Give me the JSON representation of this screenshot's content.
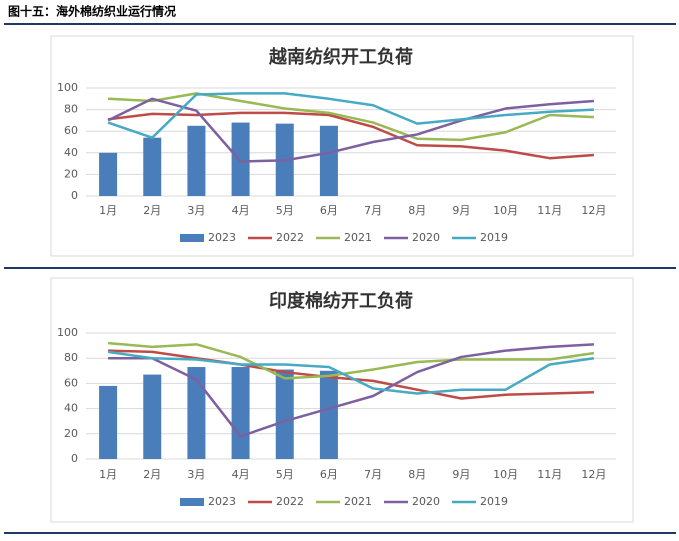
{
  "header": {
    "title": "图十五：海外棉纺织业运行情况"
  },
  "chart_data": [
    {
      "type": "bar",
      "title": "越南纺织开工负荷",
      "categories": [
        "1月",
        "2月",
        "3月",
        "4月",
        "5月",
        "6月",
        "7月",
        "8月",
        "9月",
        "10月",
        "11月",
        "12月"
      ],
      "ylim": [
        0,
        100
      ],
      "yticks": [
        0,
        20,
        40,
        60,
        80,
        100
      ],
      "grid": true,
      "series": [
        {
          "name": "2023",
          "type": "bar",
          "color": "#4a7ebb",
          "values": [
            40,
            54,
            65,
            68,
            67,
            65,
            null,
            null,
            null,
            null,
            null,
            null
          ]
        },
        {
          "name": "2022",
          "type": "line",
          "color": "#be4b48",
          "values": [
            71,
            76,
            75,
            77,
            77,
            75,
            64,
            47,
            46,
            42,
            35,
            38
          ]
        },
        {
          "name": "2021",
          "type": "line",
          "color": "#98b954",
          "values": [
            90,
            88,
            95,
            88,
            81,
            77,
            68,
            53,
            52,
            59,
            75,
            73
          ]
        },
        {
          "name": "2020",
          "type": "line",
          "color": "#7d60a0",
          "values": [
            70,
            90,
            79,
            32,
            33,
            40,
            50,
            57,
            70,
            81,
            85,
            88
          ]
        },
        {
          "name": "2019",
          "type": "line",
          "color": "#46aac5",
          "values": [
            68,
            54,
            94,
            95,
            95,
            90,
            84,
            67,
            71,
            75,
            78,
            80
          ]
        }
      ]
    },
    {
      "type": "bar",
      "title": "印度棉纺开工负荷",
      "categories": [
        "1月",
        "2月",
        "3月",
        "4月",
        "5月",
        "6月",
        "7月",
        "8月",
        "9月",
        "10月",
        "11月",
        "12月"
      ],
      "ylim": [
        0,
        100
      ],
      "yticks": [
        0,
        20,
        40,
        60,
        80,
        100
      ],
      "grid": true,
      "series": [
        {
          "name": "2023",
          "type": "bar",
          "color": "#4a7ebb",
          "values": [
            58,
            67,
            73,
            73,
            71,
            70,
            null,
            null,
            null,
            null,
            null,
            null
          ]
        },
        {
          "name": "2022",
          "type": "line",
          "color": "#be4b48",
          "values": [
            86,
            85,
            80,
            75,
            69,
            65,
            62,
            55,
            48,
            51,
            52,
            53
          ]
        },
        {
          "name": "2021",
          "type": "line",
          "color": "#98b954",
          "values": [
            92,
            89,
            91,
            81,
            64,
            66,
            71,
            77,
            79,
            79,
            79,
            84
          ]
        },
        {
          "name": "2020",
          "type": "line",
          "color": "#7d60a0",
          "values": [
            80,
            80,
            63,
            18,
            30,
            40,
            50,
            69,
            81,
            86,
            89,
            91
          ]
        },
        {
          "name": "2019",
          "type": "line",
          "color": "#46aac5",
          "values": [
            85,
            80,
            79,
            75,
            75,
            73,
            56,
            52,
            55,
            55,
            75,
            80
          ]
        }
      ]
    }
  ]
}
